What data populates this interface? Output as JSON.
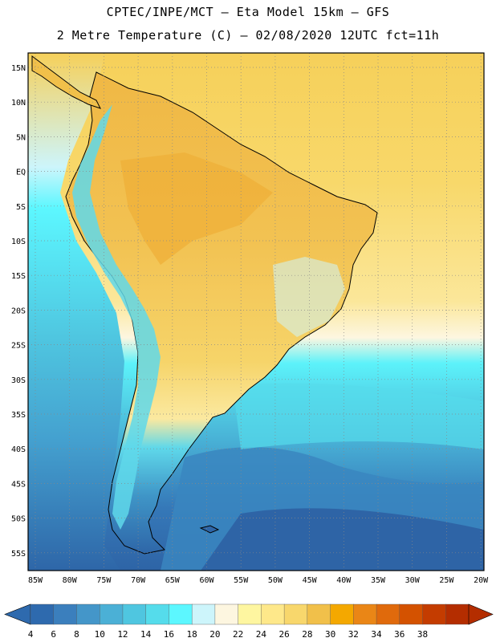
{
  "header": {
    "line1": "CPTEC/INPE/MCT –  Eta Model 15km – GFS",
    "line2": "2 Metre Temperature (C) – 02/08/2020 12UTC fct=11h"
  },
  "axes": {
    "lat_labels": [
      "15N",
      "10N",
      "5N",
      "EQ",
      "5S",
      "10S",
      "15S",
      "20S",
      "25S",
      "30S",
      "35S",
      "40S",
      "45S",
      "50S",
      "55S"
    ],
    "lon_labels": [
      "85W",
      "80W",
      "75W",
      "70W",
      "65W",
      "60W",
      "55W",
      "50W",
      "45W",
      "40W",
      "35W",
      "30W",
      "25W",
      "20W"
    ]
  },
  "colorbar": {
    "labels": [
      "4",
      "6",
      "8",
      "10",
      "12",
      "14",
      "16",
      "18",
      "20",
      "22",
      "24",
      "26",
      "28",
      "30",
      "32",
      "34",
      "36",
      "38"
    ],
    "colors": [
      "#2e6aae",
      "#3b7fbd",
      "#4496c9",
      "#4bb0d6",
      "#4fc6e0",
      "#55dceb",
      "#5cf7ff",
      "#cdf5fb",
      "#fdf6e0",
      "#fef6a0",
      "#fee88a",
      "#f8d76c",
      "#f1c04a",
      "#f4a800",
      "#ea8616",
      "#e06a0c",
      "#d45200",
      "#c43c00",
      "#b42d00"
    ],
    "left_arrow_color": "#2e6aae",
    "right_arrow_color": "#b42d00"
  },
  "map_colors": {
    "ocean_warm": "#f6d05a",
    "land_hot": "#f0b53e",
    "land_warm": "#f5cf5c",
    "andes_cool": "#5fd8ea",
    "ocean_cool": "#4dc3dc",
    "ocean_cold": "#3f95c7",
    "ocean_coldest": "#2e66a8",
    "gridline": "#888888",
    "frame": "#000000"
  }
}
